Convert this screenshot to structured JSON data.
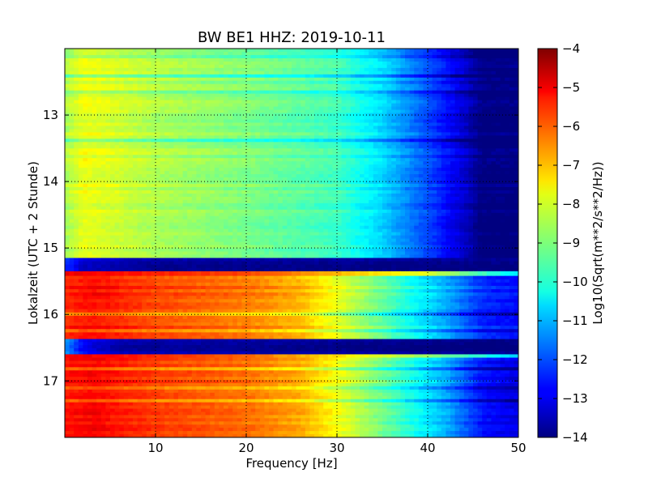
{
  "chart_data": {
    "type": "heatmap",
    "title": "BW BE1 HHZ: 2019-10-11",
    "xlabel": "Frequency [Hz]",
    "ylabel": "Lokalzeit (UTC + 2 Stunde)",
    "colorbar_label": "Log10(Sqrt(m**2/s**2/Hz))",
    "xlim": [
      0,
      50
    ],
    "ylim": [
      17.85,
      12.0
    ],
    "x_ticks": [
      10,
      20,
      30,
      40,
      50
    ],
    "y_ticks": [
      13,
      14,
      15,
      16,
      17
    ],
    "clim": [
      -14,
      -4
    ],
    "colorbar_ticks": [
      -4,
      -5,
      -6,
      -7,
      -8,
      -9,
      -10,
      -11,
      -12,
      -13,
      -14
    ],
    "colormap": "jet",
    "grid": true,
    "time_blocks": [
      {
        "t_start": 12.0,
        "t_end": 15.15,
        "profile": [
          {
            "f": 0,
            "v": -8.6
          },
          {
            "f": 2,
            "v": -7.9
          },
          {
            "f": 5,
            "v": -8.1
          },
          {
            "f": 10,
            "v": -8.5
          },
          {
            "f": 20,
            "v": -9.0
          },
          {
            "f": 30,
            "v": -9.6
          },
          {
            "f": 35,
            "v": -10.6
          },
          {
            "f": 40,
            "v": -12.0
          },
          {
            "f": 44,
            "v": -13.2
          },
          {
            "f": 46,
            "v": -14
          },
          {
            "f": 50,
            "v": -14
          }
        ]
      },
      {
        "t_start": 15.15,
        "t_end": 15.35,
        "profile": [
          {
            "f": 0,
            "v": -12.2
          },
          {
            "f": 2,
            "v": -13.3
          },
          {
            "f": 10,
            "v": -13.8
          },
          {
            "f": 50,
            "v": -14
          }
        ]
      },
      {
        "t_start": 15.35,
        "t_end": 15.42,
        "profile": [
          {
            "f": 0,
            "v": -4.5
          },
          {
            "f": 20,
            "v": -5.3
          },
          {
            "f": 40,
            "v": -7.5
          },
          {
            "f": 50,
            "v": -10.0
          }
        ]
      },
      {
        "t_start": 15.42,
        "t_end": 16.37,
        "profile": [
          {
            "f": 0,
            "v": -5.6
          },
          {
            "f": 3,
            "v": -5.3
          },
          {
            "f": 10,
            "v": -5.9
          },
          {
            "f": 20,
            "v": -6.4
          },
          {
            "f": 26,
            "v": -7.0
          },
          {
            "f": 32,
            "v": -8.4
          },
          {
            "f": 38,
            "v": -10.0
          },
          {
            "f": 42,
            "v": -11.0
          },
          {
            "f": 46,
            "v": -12.3
          },
          {
            "f": 50,
            "v": -12.6
          }
        ]
      },
      {
        "t_start": 16.37,
        "t_end": 16.6,
        "profile": [
          {
            "f": 0,
            "v": -11.2
          },
          {
            "f": 2,
            "v": -12.8
          },
          {
            "f": 6,
            "v": -13.6
          },
          {
            "f": 50,
            "v": -14
          }
        ]
      },
      {
        "t_start": 16.6,
        "t_end": 16.65,
        "profile": [
          {
            "f": 0,
            "v": -4.8
          },
          {
            "f": 20,
            "v": -6.0
          },
          {
            "f": 40,
            "v": -8.5
          },
          {
            "f": 50,
            "v": -10.5
          }
        ]
      },
      {
        "t_start": 16.65,
        "t_end": 17.85,
        "profile": [
          {
            "f": 0,
            "v": -5.4
          },
          {
            "f": 3,
            "v": -5.2
          },
          {
            "f": 10,
            "v": -5.8
          },
          {
            "f": 20,
            "v": -6.3
          },
          {
            "f": 26,
            "v": -6.9
          },
          {
            "f": 32,
            "v": -8.3
          },
          {
            "f": 38,
            "v": -9.9
          },
          {
            "f": 42,
            "v": -11.0
          },
          {
            "f": 46,
            "v": -12.6
          },
          {
            "f": 50,
            "v": -13.0
          }
        ]
      }
    ]
  }
}
